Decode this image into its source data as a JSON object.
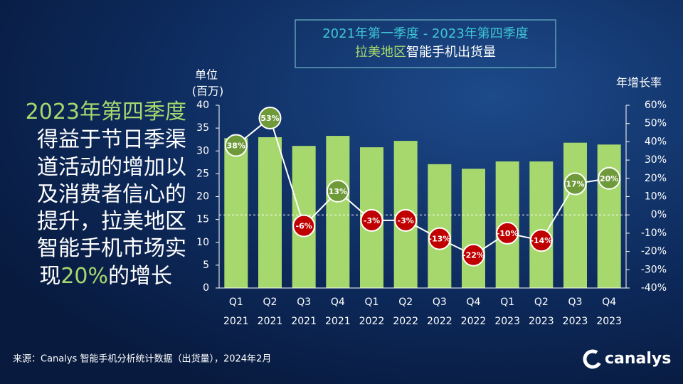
{
  "chart_data": {
    "type": "bar_line",
    "title": [
      "2021年第一季度 - 2023年第四季度",
      "拉美地区",
      "智能手机出货量"
    ],
    "y_label": [
      "单位",
      "(百万)"
    ],
    "y2_label": "年增长率",
    "categories": [
      [
        "Q1",
        "2021"
      ],
      [
        "Q2",
        "2021"
      ],
      [
        "Q3",
        "2021"
      ],
      [
        "Q4",
        "2021"
      ],
      [
        "Q1",
        "2022"
      ],
      [
        "Q2",
        "2022"
      ],
      [
        "Q3",
        "2022"
      ],
      [
        "Q4",
        "2022"
      ],
      [
        "Q1",
        "2023"
      ],
      [
        "Q2",
        "2023"
      ],
      [
        "Q3",
        "2023"
      ],
      [
        "Q4",
        "2023"
      ]
    ],
    "series": [
      {
        "type": "bar",
        "color": "#a6d86e",
        "values": [
          32.8,
          33.0,
          31.1,
          33.3,
          30.8,
          32.2,
          27.1,
          26.1,
          27.7,
          27.7,
          31.8,
          31.4
        ]
      },
      {
        "type": "line",
        "axis": "y2",
        "color": "#ffffff",
        "positive_color": "#6f9a3a",
        "negative_color": "#c00000",
        "values": [
          38,
          53,
          -6,
          13,
          -3,
          -3,
          -13,
          -22,
          -10,
          -14,
          17,
          20
        ],
        "value_labels": [
          "38%",
          "53%",
          "-6%",
          "13%",
          "-3%",
          "-3%",
          "-13%",
          "-22%",
          "-10%",
          "-14%",
          "17%",
          "20%"
        ]
      }
    ],
    "ylim": [
      0,
      40
    ],
    "yticks": [
      0,
      5,
      10,
      15,
      20,
      25,
      30,
      35,
      40
    ],
    "y2lim": [
      -40,
      60
    ],
    "y2ticks": [
      {
        "value": 60,
        "label": "60%"
      },
      {
        "value": 50,
        "label": "50%"
      },
      {
        "value": 40,
        "label": "40%"
      },
      {
        "value": 30,
        "label": "30%"
      },
      {
        "value": 20,
        "label": "20%"
      },
      {
        "value": 10,
        "label": "10%"
      },
      {
        "value": 0,
        "label": "0%"
      },
      {
        "value": -10,
        "label": "-10%"
      },
      {
        "value": -20,
        "label": "-20%"
      },
      {
        "value": -30,
        "label": "-30%"
      },
      {
        "value": -40,
        "label": "-40%"
      }
    ],
    "annotation": [
      [
        "2023年第四季度"
      ],
      [
        "得益于节日季渠"
      ],
      [
        "道活动的增加以"
      ],
      [
        "及消费者信心的"
      ],
      [
        "提升，拉美地区"
      ],
      [
        "智能手机市场实"
      ],
      [
        "现",
        "20%",
        "的增长"
      ]
    ],
    "source": "来源：Canalys 智能手机分析统计数据（出货量），2024年2月",
    "logo": "canalys"
  }
}
